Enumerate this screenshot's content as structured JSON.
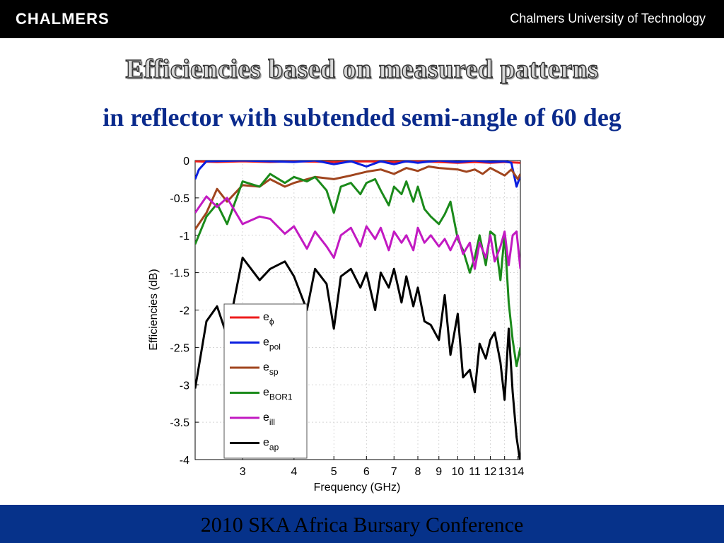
{
  "header": {
    "logo_text": "CHALMERS",
    "university": "Chalmers University of Technology"
  },
  "slide": {
    "title": "Efficiencies based on measured patterns",
    "subtitle": "in reflector with subtended semi-angle of 60 deg"
  },
  "footer": {
    "text": "2010 SKA Africa Bursary Conference"
  },
  "colors": {
    "topbar": "#000000",
    "bottombar": "#06328a",
    "subtitle": "#0a2a8c"
  },
  "chart_data": {
    "type": "line",
    "xlabel": "Frequency (GHz)",
    "ylabel": "Efficiencies (dB)",
    "x_scale": "log",
    "xlim": [
      2.3,
      14.2
    ],
    "ylim": [
      -4,
      0
    ],
    "grid": true,
    "x_ticks": [
      3,
      4,
      5,
      6,
      7,
      8,
      9,
      10,
      11,
      12,
      13,
      14
    ],
    "x_tick_labels": [
      "3",
      "4",
      "5",
      "6",
      "7",
      "8",
      "9",
      "10",
      "11",
      "12",
      "13",
      "14"
    ],
    "y_ticks": [
      0,
      -0.5,
      -1,
      -1.5,
      -2,
      -2.5,
      -3,
      -3.5,
      -4
    ],
    "y_tick_labels": [
      "0",
      "-0.5",
      "-1",
      "-1.5",
      "-2",
      "-2.5",
      "-3",
      "-3.5",
      "-4"
    ],
    "legend_position": "lower-left",
    "series": [
      {
        "name": "e",
        "sub": "ϕ",
        "color": "#ee1c1c",
        "x": [
          2.3,
          2.6,
          3.0,
          3.5,
          4.0,
          5.0,
          6.0,
          7.0,
          8.0,
          9.0,
          10.0,
          11.0,
          12.0,
          13.0,
          14.2
        ],
        "y": [
          -0.01,
          -0.02,
          -0.01,
          -0.02,
          -0.01,
          -0.02,
          -0.01,
          -0.02,
          -0.01,
          -0.02,
          -0.03,
          -0.02,
          -0.03,
          -0.02,
          -0.03
        ]
      },
      {
        "name": "e",
        "sub": "pol",
        "color": "#0a1ee0",
        "x": [
          2.3,
          2.35,
          2.45,
          3.0,
          3.5,
          4.0,
          4.5,
          5.0,
          5.5,
          6.0,
          6.5,
          7.0,
          7.5,
          8.0,
          9.0,
          10.0,
          11.0,
          12.0,
          13.0,
          13.5,
          13.9,
          14.2
        ],
        "y": [
          -0.25,
          -0.12,
          -0.01,
          0,
          -0.01,
          -0.02,
          0,
          -0.05,
          -0.01,
          -0.08,
          -0.01,
          -0.05,
          -0.01,
          -0.03,
          0,
          -0.02,
          0,
          -0.02,
          -0.01,
          -0.03,
          -0.35,
          -0.2
        ]
      },
      {
        "name": "e",
        "sub": "sp",
        "color": "#a0451e",
        "x": [
          2.3,
          2.45,
          2.6,
          2.75,
          3.0,
          3.3,
          3.5,
          3.8,
          4.0,
          4.5,
          5.0,
          5.5,
          6.0,
          6.5,
          7.0,
          7.5,
          8.0,
          8.5,
          9.0,
          10.0,
          10.5,
          11.0,
          11.5,
          12.0,
          12.5,
          13.0,
          13.5,
          14.0,
          14.2
        ],
        "y": [
          -0.92,
          -0.7,
          -0.38,
          -0.55,
          -0.33,
          -0.35,
          -0.25,
          -0.35,
          -0.3,
          -0.22,
          -0.25,
          -0.2,
          -0.15,
          -0.12,
          -0.18,
          -0.1,
          -0.14,
          -0.08,
          -0.1,
          -0.12,
          -0.15,
          -0.12,
          -0.18,
          -0.1,
          -0.15,
          -0.2,
          -0.12,
          -0.25,
          -0.18
        ]
      },
      {
        "name": "e",
        "sub": "BOR1",
        "color": "#1a8a1a",
        "x": [
          2.3,
          2.45,
          2.6,
          2.75,
          3.0,
          3.3,
          3.5,
          3.8,
          4.0,
          4.3,
          4.5,
          4.8,
          5.0,
          5.2,
          5.5,
          5.8,
          6.0,
          6.3,
          6.5,
          6.8,
          7.0,
          7.3,
          7.5,
          7.8,
          8.0,
          8.3,
          8.6,
          9.0,
          9.3,
          9.6,
          10.0,
          10.3,
          10.7,
          11.0,
          11.3,
          11.7,
          12.0,
          12.3,
          12.7,
          13.0,
          13.3,
          13.6,
          13.9,
          14.2
        ],
        "y": [
          -1.12,
          -0.75,
          -0.58,
          -0.85,
          -0.28,
          -0.35,
          -0.18,
          -0.3,
          -0.22,
          -0.28,
          -0.22,
          -0.4,
          -0.7,
          -0.35,
          -0.3,
          -0.45,
          -0.3,
          -0.25,
          -0.4,
          -0.6,
          -0.35,
          -0.45,
          -0.28,
          -0.55,
          -0.35,
          -0.65,
          -0.75,
          -0.85,
          -0.72,
          -0.55,
          -1.05,
          -1.2,
          -1.5,
          -1.3,
          -1.0,
          -1.4,
          -0.95,
          -1.0,
          -1.6,
          -0.98,
          -1.9,
          -2.4,
          -2.75,
          -2.5
        ]
      },
      {
        "name": "e",
        "sub": "ill",
        "color": "#c21ac2",
        "x": [
          2.3,
          2.45,
          2.6,
          2.75,
          3.0,
          3.3,
          3.5,
          3.8,
          4.0,
          4.3,
          4.5,
          4.8,
          5.0,
          5.2,
          5.5,
          5.8,
          6.0,
          6.3,
          6.5,
          6.8,
          7.0,
          7.3,
          7.5,
          7.8,
          8.0,
          8.3,
          8.6,
          9.0,
          9.3,
          9.6,
          10.0,
          10.3,
          10.7,
          11.0,
          11.3,
          11.7,
          12.0,
          12.3,
          12.7,
          13.0,
          13.3,
          13.6,
          13.9,
          14.2
        ],
        "y": [
          -0.7,
          -0.48,
          -0.62,
          -0.5,
          -0.85,
          -0.75,
          -0.78,
          -0.98,
          -0.88,
          -1.18,
          -0.95,
          -1.15,
          -1.3,
          -1.0,
          -0.9,
          -1.15,
          -0.88,
          -1.05,
          -0.9,
          -1.2,
          -0.95,
          -1.1,
          -1.0,
          -1.2,
          -0.9,
          -1.1,
          -1.0,
          -1.15,
          -1.05,
          -1.2,
          -1.0,
          -1.25,
          -1.1,
          -1.45,
          -1.1,
          -1.3,
          -1.0,
          -1.35,
          -1.15,
          -0.95,
          -1.4,
          -1.0,
          -0.95,
          -1.45
        ]
      },
      {
        "name": "e",
        "sub": "ap",
        "color": "#000000",
        "x": [
          2.3,
          2.45,
          2.6,
          2.75,
          3.0,
          3.3,
          3.5,
          3.8,
          4.0,
          4.3,
          4.5,
          4.8,
          5.0,
          5.2,
          5.5,
          5.8,
          6.0,
          6.3,
          6.5,
          6.8,
          7.0,
          7.3,
          7.5,
          7.8,
          8.0,
          8.3,
          8.6,
          9.0,
          9.3,
          9.6,
          10.0,
          10.3,
          10.7,
          11.0,
          11.3,
          11.7,
          12.0,
          12.3,
          12.7,
          13.0,
          13.3,
          13.6,
          13.9,
          14.2
        ],
        "y": [
          -3.05,
          -2.15,
          -1.95,
          -2.35,
          -1.3,
          -1.6,
          -1.45,
          -1.35,
          -1.55,
          -2.0,
          -1.45,
          -1.65,
          -2.25,
          -1.55,
          -1.45,
          -1.7,
          -1.5,
          -2.0,
          -1.5,
          -1.7,
          -1.45,
          -1.9,
          -1.55,
          -1.95,
          -1.7,
          -2.15,
          -2.2,
          -2.4,
          -1.8,
          -2.6,
          -2.05,
          -2.9,
          -2.8,
          -3.1,
          -2.45,
          -2.65,
          -2.4,
          -2.3,
          -2.7,
          -3.2,
          -2.25,
          -3.1,
          -3.7,
          -4.05
        ]
      }
    ]
  }
}
